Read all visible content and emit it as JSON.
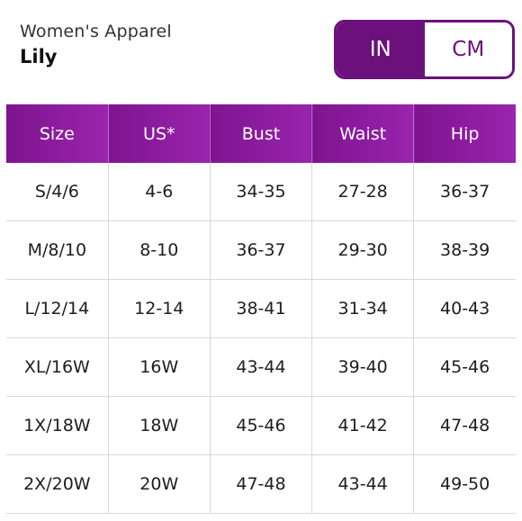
{
  "header": {
    "category": "Women's Apparel",
    "product": "Lily"
  },
  "unit_toggle": {
    "options": [
      {
        "label": "IN",
        "selected": true
      },
      {
        "label": "CM",
        "selected": false
      }
    ]
  },
  "colors": {
    "accent": "#6c117c",
    "header_gradient_start": "#7e148f",
    "header_gradient_end": "#9a24ae"
  },
  "table": {
    "columns": [
      "Size",
      "US*",
      "Bust",
      "Waist",
      "Hip"
    ],
    "rows": [
      [
        "S/4/6",
        "4-6",
        "34-35",
        "27-28",
        "36-37"
      ],
      [
        "M/8/10",
        "8-10",
        "36-37",
        "29-30",
        "38-39"
      ],
      [
        "L/12/14",
        "12-14",
        "38-41",
        "31-34",
        "40-43"
      ],
      [
        "XL/16W",
        "16W",
        "43-44",
        "39-40",
        "45-46"
      ],
      [
        "1X/18W",
        "18W",
        "45-46",
        "41-42",
        "47-48"
      ],
      [
        "2X/20W",
        "20W",
        "47-48",
        "43-44",
        "49-50"
      ]
    ]
  }
}
